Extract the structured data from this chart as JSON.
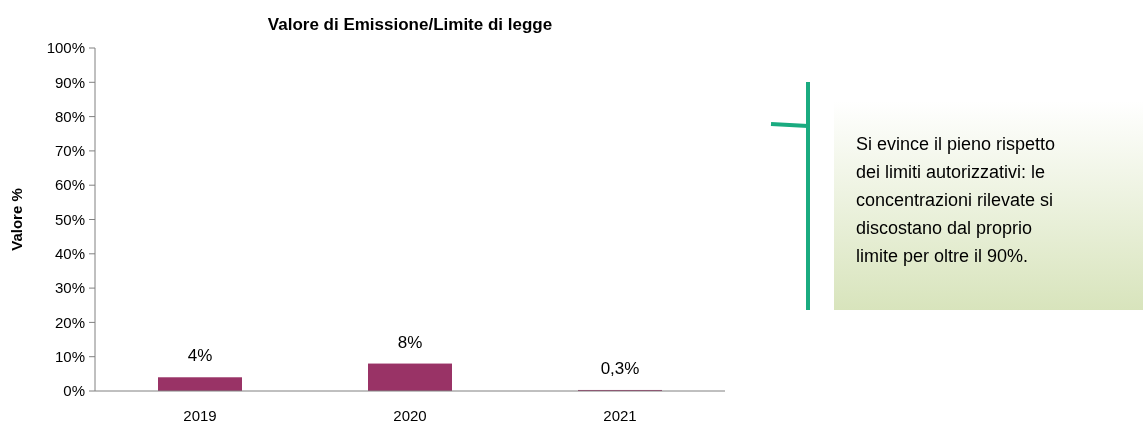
{
  "chart_data": {
    "type": "bar",
    "title": "Valore di Emissione/Limite di legge",
    "ylabel": "Valore %",
    "categories": [
      "2019",
      "2020",
      "2021"
    ],
    "values": [
      4,
      8,
      0.3
    ],
    "color": "#993366",
    "value_labels": [
      "4%",
      "8%",
      "0,3%"
    ],
    "ylim": [
      0,
      100
    ],
    "yticks": [
      {
        "value": 0,
        "label": "0%"
      },
      {
        "value": 10,
        "label": "10%"
      },
      {
        "value": 20,
        "label": "20%"
      },
      {
        "value": 30,
        "label": "30%"
      },
      {
        "value": 40,
        "label": "40%"
      },
      {
        "value": 50,
        "label": "50%"
      },
      {
        "value": 60,
        "label": "60%"
      },
      {
        "value": 70,
        "label": "70%"
      },
      {
        "value": 80,
        "label": "80%"
      },
      {
        "value": 90,
        "label": "90%"
      },
      {
        "value": 100,
        "label": "100%"
      }
    ],
    "grid": false,
    "annotations": [
      "Si evince il pieno rispetto dei limiti autorizzativi: le concentrazioni rilevate si discostano dal proprio limite per oltre il 90%."
    ]
  }
}
